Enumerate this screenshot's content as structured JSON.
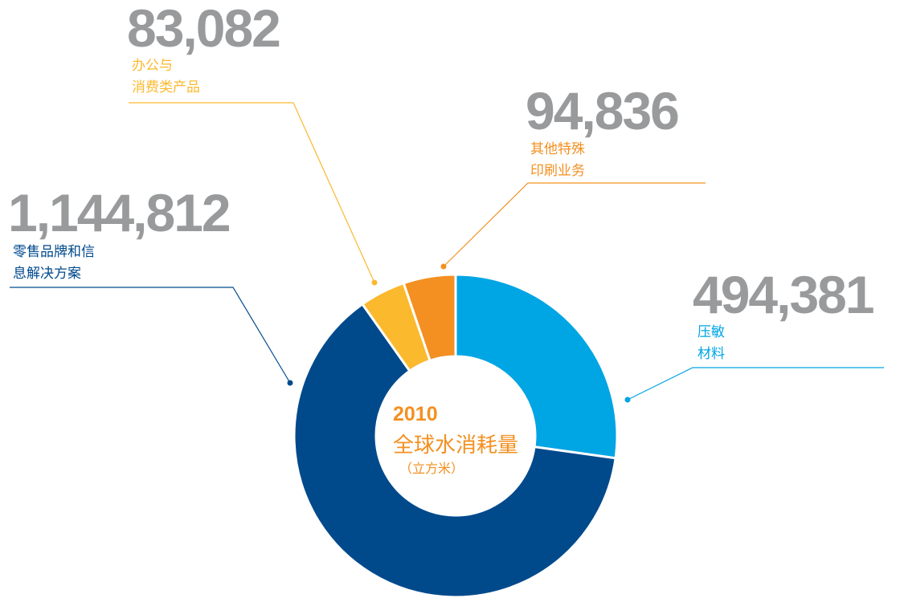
{
  "chart_data": {
    "type": "donut",
    "categories": [
      "压敏\n材料",
      "零售品牌和信\n息解决方案",
      "办公与\n消费类产品",
      "其他特殊\n印刷业务"
    ],
    "values": [
      494381,
      1144812,
      83082,
      94836
    ],
    "value_labels": [
      "494,381",
      "1,144,812",
      "83,082",
      "94,836"
    ],
    "colors": [
      "#00a5e3",
      "#004a8c",
      "#fbb92e",
      "#f39021"
    ],
    "center_text": {
      "year": "2010",
      "title": "全球水消耗量",
      "unit": "（立方米）"
    }
  }
}
